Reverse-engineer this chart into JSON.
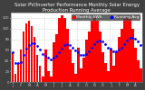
{
  "title": "Solar PV/Inverter Performance Monthly Solar Energy Production Running Average",
  "bar_color": "#ff0000",
  "line_color": "#0000ff",
  "background_color": "#404040",
  "plot_bg_color": "#ffffff",
  "values": [
    55,
    15,
    35,
    60,
    95,
    110,
    115,
    105,
    85,
    50,
    30,
    10,
    60,
    20,
    10,
    75,
    90,
    120,
    125,
    120,
    100,
    60,
    35,
    15,
    65,
    25,
    45,
    80,
    95,
    115,
    120,
    115,
    95,
    55,
    35,
    20,
    60,
    30,
    55,
    85,
    100,
    118,
    122,
    118,
    100,
    65,
    40,
    25
  ],
  "running_avg": [
    55,
    35,
    35,
    38,
    51,
    62,
    70,
    73,
    72,
    68,
    60,
    52,
    49,
    46,
    42,
    45,
    49,
    56,
    63,
    69,
    71,
    69,
    65,
    59,
    56,
    51,
    50,
    53,
    57,
    64,
    71,
    76,
    78,
    76,
    71,
    65,
    62,
    58,
    57,
    60,
    64,
    71,
    77,
    82,
    83,
    81,
    76,
    70
  ],
  "ylim": [
    0,
    130
  ],
  "n_bars": 48,
  "yticks": [
    0,
    20,
    40,
    60,
    80,
    100,
    120
  ],
  "title_fontsize": 3.8,
  "tick_fontsize": 2.8,
  "legend_fontsize": 3.2,
  "grid_color": "#cccccc",
  "legend_bar": "Monthly kWh",
  "legend_line": "Running Avg",
  "title_color": "#ffffff"
}
